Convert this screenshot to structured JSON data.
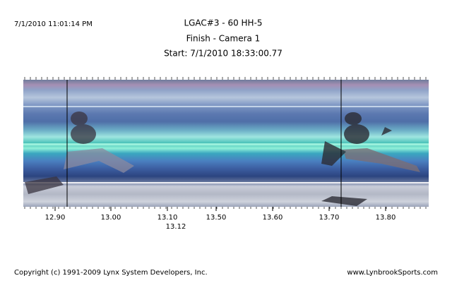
{
  "header": {
    "timestamp": "7/1/2010 11:01:14 PM",
    "title": "LGAC#3 - 60 HH-5",
    "subtitle": "Finish - Camera 1",
    "start": "Start: 7/1/2010 18:33:00.77"
  },
  "axis": {
    "ticks": [
      "12.90",
      "13.00",
      "13.10",
      "13.50",
      "13.60",
      "13.70",
      "13.80"
    ],
    "marker_label": "13.12"
  },
  "footer": {
    "copyright": "Copyright (c) 1991-2009 Lynx System Developers, Inc.",
    "website": "www.LynbrookSports.com"
  }
}
